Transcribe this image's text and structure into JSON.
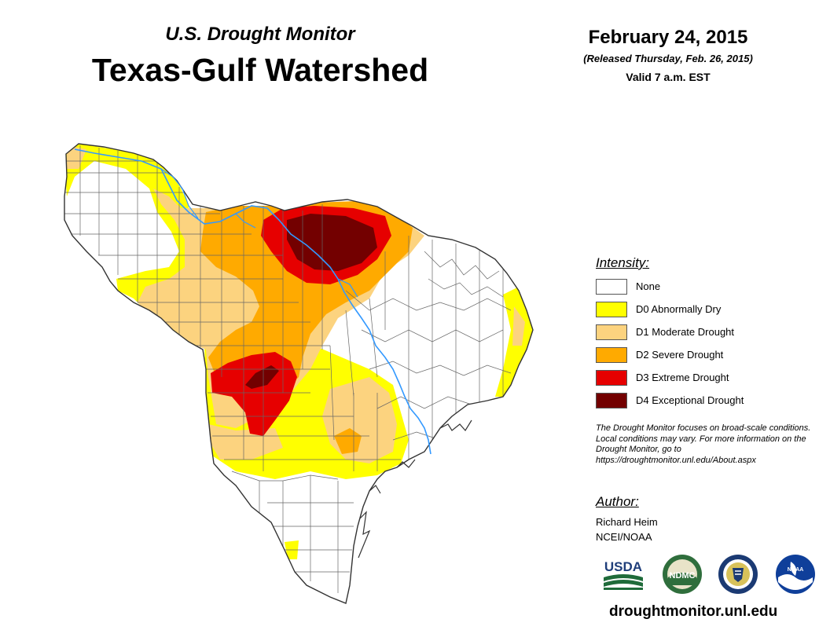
{
  "header": {
    "monitor": "U.S. Drought Monitor",
    "region": "Texas-Gulf Watershed",
    "date": "February 24, 2015",
    "released": "(Released Thursday, Feb. 26, 2015)",
    "valid": "Valid 7 a.m. EST"
  },
  "legend": {
    "title": "Intensity:",
    "items": [
      {
        "label": "None",
        "color": "#ffffff"
      },
      {
        "label": "D0 Abnormally Dry",
        "color": "#ffff00"
      },
      {
        "label": "D1 Moderate Drought",
        "color": "#fcd37f"
      },
      {
        "label": "D2 Severe Drought",
        "color": "#ffaa00"
      },
      {
        "label": "D3 Extreme Drought",
        "color": "#e60000"
      },
      {
        "label": "D4 Exceptional Drought",
        "color": "#730000"
      }
    ]
  },
  "note": "The Drought Monitor focuses on broad-scale conditions. Local conditions may vary. For more information on the Drought Monitor, go to https://droughtmonitor.unl.edu/About.aspx",
  "author": {
    "title": "Author:",
    "name": "Richard Heim",
    "org": "NCEI/NOAA"
  },
  "logos": {
    "usda": "USDA",
    "ndmc": "NDMC",
    "noaa": "NOAA"
  },
  "footer": {
    "url": "droughtmonitor.unl.edu"
  },
  "colors": {
    "river": "#3399ff",
    "county_line": "#666666",
    "boundary": "#333333"
  }
}
